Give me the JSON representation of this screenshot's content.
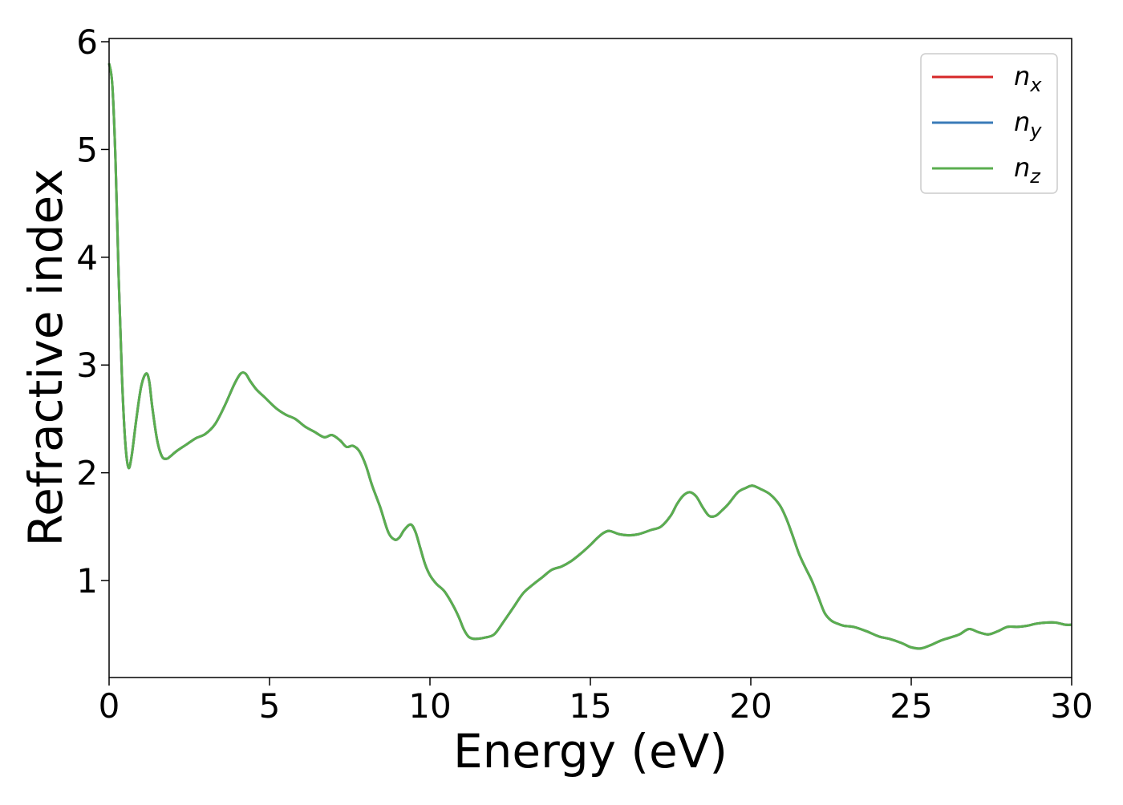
{
  "chart_data": {
    "type": "line",
    "xlabel": "Energy (eV)",
    "ylabel": "Refractive index",
    "xlim": [
      0,
      30
    ],
    "ylim": [
      0.1,
      6.03
    ],
    "xticks": [
      0,
      5,
      10,
      15,
      20,
      25,
      30
    ],
    "yticks": [
      1,
      2,
      3,
      4,
      5,
      6
    ],
    "grid": false,
    "legend_position": "top-right",
    "series": [
      {
        "name": "n",
        "subscript": "x",
        "color": "#d62728",
        "x": [
          0,
          0.1,
          0.2,
          0.3,
          0.4,
          0.5,
          0.6,
          0.7,
          0.85,
          1.0,
          1.15,
          1.25,
          1.35,
          1.5,
          1.65,
          1.8,
          1.9,
          2.1,
          2.4,
          2.7,
          3.0,
          3.3,
          3.6,
          3.9,
          4.1,
          4.25,
          4.4,
          4.6,
          4.85,
          5.2,
          5.5,
          5.8,
          6.1,
          6.4,
          6.7,
          6.95,
          7.2,
          7.4,
          7.6,
          7.8,
          8.0,
          8.2,
          8.45,
          8.7,
          8.9,
          9.05,
          9.2,
          9.4,
          9.55,
          9.7,
          9.85,
          10.0,
          10.2,
          10.45,
          10.7,
          10.9,
          11.05,
          11.2,
          11.35,
          11.5,
          11.7,
          12.0,
          12.3,
          12.6,
          12.9,
          13.2,
          13.5,
          13.8,
          14.1,
          14.4,
          14.7,
          15.0,
          15.2,
          15.4,
          15.6,
          15.9,
          16.2,
          16.5,
          16.9,
          17.2,
          17.5,
          17.7,
          17.9,
          18.1,
          18.3,
          18.5,
          18.7,
          18.9,
          19.1,
          19.3,
          19.6,
          19.85,
          20.05,
          20.3,
          20.6,
          20.9,
          21.1,
          21.3,
          21.5,
          21.7,
          21.9,
          22.1,
          22.3,
          22.5,
          22.7,
          22.9,
          23.2,
          23.6,
          24.0,
          24.3,
          24.7,
          25.0,
          25.3,
          25.6,
          25.9,
          26.2,
          26.5,
          26.8,
          27.1,
          27.4,
          27.7,
          28.0,
          28.3,
          28.6,
          28.9,
          29.2,
          29.5,
          29.8,
          30.0
        ],
        "y": [
          5.8,
          5.6,
          4.9,
          3.8,
          2.9,
          2.3,
          2.05,
          2.15,
          2.5,
          2.8,
          2.92,
          2.85,
          2.6,
          2.3,
          2.15,
          2.13,
          2.15,
          2.2,
          2.26,
          2.32,
          2.36,
          2.45,
          2.62,
          2.82,
          2.92,
          2.92,
          2.85,
          2.77,
          2.7,
          2.6,
          2.54,
          2.5,
          2.43,
          2.38,
          2.33,
          2.35,
          2.3,
          2.24,
          2.25,
          2.2,
          2.07,
          1.88,
          1.68,
          1.45,
          1.38,
          1.4,
          1.47,
          1.52,
          1.45,
          1.3,
          1.15,
          1.05,
          0.97,
          0.9,
          0.78,
          0.66,
          0.55,
          0.48,
          0.46,
          0.46,
          0.47,
          0.5,
          0.62,
          0.75,
          0.88,
          0.96,
          1.03,
          1.1,
          1.13,
          1.18,
          1.25,
          1.33,
          1.39,
          1.44,
          1.46,
          1.43,
          1.42,
          1.43,
          1.47,
          1.5,
          1.6,
          1.71,
          1.79,
          1.82,
          1.78,
          1.68,
          1.6,
          1.6,
          1.65,
          1.71,
          1.82,
          1.86,
          1.88,
          1.85,
          1.8,
          1.7,
          1.58,
          1.42,
          1.25,
          1.12,
          1.0,
          0.85,
          0.7,
          0.63,
          0.6,
          0.58,
          0.57,
          0.53,
          0.48,
          0.46,
          0.42,
          0.38,
          0.37,
          0.4,
          0.44,
          0.47,
          0.5,
          0.55,
          0.52,
          0.5,
          0.53,
          0.57,
          0.57,
          0.58,
          0.6,
          0.61,
          0.61,
          0.59,
          0.59
        ]
      },
      {
        "name": "n",
        "subscript": "y",
        "color": "#3a7bb8",
        "x": [
          0,
          0.1,
          0.2,
          0.3,
          0.4,
          0.5,
          0.6,
          0.7,
          0.85,
          1.0,
          1.15,
          1.25,
          1.35,
          1.5,
          1.65,
          1.8,
          1.9,
          2.1,
          2.4,
          2.7,
          3.0,
          3.3,
          3.6,
          3.9,
          4.1,
          4.25,
          4.4,
          4.6,
          4.85,
          5.2,
          5.5,
          5.8,
          6.1,
          6.4,
          6.7,
          6.95,
          7.2,
          7.4,
          7.6,
          7.8,
          8.0,
          8.2,
          8.45,
          8.7,
          8.9,
          9.05,
          9.2,
          9.4,
          9.55,
          9.7,
          9.85,
          10.0,
          10.2,
          10.45,
          10.7,
          10.9,
          11.05,
          11.2,
          11.35,
          11.5,
          11.7,
          12.0,
          12.3,
          12.6,
          12.9,
          13.2,
          13.5,
          13.8,
          14.1,
          14.4,
          14.7,
          15.0,
          15.2,
          15.4,
          15.6,
          15.9,
          16.2,
          16.5,
          16.9,
          17.2,
          17.5,
          17.7,
          17.9,
          18.1,
          18.3,
          18.5,
          18.7,
          18.9,
          19.1,
          19.3,
          19.6,
          19.85,
          20.05,
          20.3,
          20.6,
          20.9,
          21.1,
          21.3,
          21.5,
          21.7,
          21.9,
          22.1,
          22.3,
          22.5,
          22.7,
          22.9,
          23.2,
          23.6,
          24.0,
          24.3,
          24.7,
          25.0,
          25.3,
          25.6,
          25.9,
          26.2,
          26.5,
          26.8,
          27.1,
          27.4,
          27.7,
          28.0,
          28.3,
          28.6,
          28.9,
          29.2,
          29.5,
          29.8,
          30.0
        ],
        "y": [
          5.8,
          5.6,
          4.9,
          3.8,
          2.9,
          2.3,
          2.05,
          2.15,
          2.5,
          2.8,
          2.92,
          2.85,
          2.6,
          2.3,
          2.15,
          2.13,
          2.15,
          2.2,
          2.26,
          2.32,
          2.36,
          2.45,
          2.62,
          2.82,
          2.92,
          2.92,
          2.85,
          2.77,
          2.7,
          2.6,
          2.54,
          2.5,
          2.43,
          2.38,
          2.33,
          2.35,
          2.3,
          2.24,
          2.25,
          2.2,
          2.07,
          1.88,
          1.68,
          1.45,
          1.38,
          1.4,
          1.47,
          1.52,
          1.45,
          1.3,
          1.15,
          1.05,
          0.97,
          0.9,
          0.78,
          0.66,
          0.55,
          0.48,
          0.46,
          0.46,
          0.47,
          0.5,
          0.62,
          0.75,
          0.88,
          0.96,
          1.03,
          1.1,
          1.13,
          1.18,
          1.25,
          1.33,
          1.39,
          1.44,
          1.46,
          1.43,
          1.42,
          1.43,
          1.47,
          1.5,
          1.6,
          1.71,
          1.79,
          1.82,
          1.78,
          1.68,
          1.6,
          1.6,
          1.65,
          1.71,
          1.82,
          1.86,
          1.88,
          1.85,
          1.8,
          1.7,
          1.58,
          1.42,
          1.25,
          1.12,
          1.0,
          0.85,
          0.7,
          0.63,
          0.6,
          0.58,
          0.57,
          0.53,
          0.48,
          0.46,
          0.42,
          0.38,
          0.37,
          0.4,
          0.44,
          0.47,
          0.5,
          0.55,
          0.52,
          0.5,
          0.53,
          0.57,
          0.57,
          0.58,
          0.6,
          0.61,
          0.61,
          0.59,
          0.59
        ]
      },
      {
        "name": "n",
        "subscript": "z",
        "color": "#5aae4f",
        "x": [
          0,
          0.1,
          0.2,
          0.3,
          0.4,
          0.5,
          0.6,
          0.7,
          0.85,
          1.0,
          1.15,
          1.25,
          1.35,
          1.5,
          1.65,
          1.8,
          1.9,
          2.1,
          2.4,
          2.7,
          3.0,
          3.3,
          3.6,
          3.9,
          4.1,
          4.25,
          4.4,
          4.6,
          4.85,
          5.2,
          5.5,
          5.8,
          6.1,
          6.4,
          6.7,
          6.95,
          7.2,
          7.4,
          7.6,
          7.8,
          8.0,
          8.2,
          8.45,
          8.7,
          8.9,
          9.05,
          9.2,
          9.4,
          9.55,
          9.7,
          9.85,
          10.0,
          10.2,
          10.45,
          10.7,
          10.9,
          11.05,
          11.2,
          11.35,
          11.5,
          11.7,
          12.0,
          12.3,
          12.6,
          12.9,
          13.2,
          13.5,
          13.8,
          14.1,
          14.4,
          14.7,
          15.0,
          15.2,
          15.4,
          15.6,
          15.9,
          16.2,
          16.5,
          16.9,
          17.2,
          17.5,
          17.7,
          17.9,
          18.1,
          18.3,
          18.5,
          18.7,
          18.9,
          19.1,
          19.3,
          19.6,
          19.85,
          20.05,
          20.3,
          20.6,
          20.9,
          21.1,
          21.3,
          21.5,
          21.7,
          21.9,
          22.1,
          22.3,
          22.5,
          22.7,
          22.9,
          23.2,
          23.6,
          24.0,
          24.3,
          24.7,
          25.0,
          25.3,
          25.6,
          25.9,
          26.2,
          26.5,
          26.8,
          27.1,
          27.4,
          27.7,
          28.0,
          28.3,
          28.6,
          28.9,
          29.2,
          29.5,
          29.8,
          30.0
        ],
        "y": [
          5.8,
          5.6,
          4.9,
          3.8,
          2.9,
          2.3,
          2.05,
          2.15,
          2.5,
          2.8,
          2.92,
          2.85,
          2.6,
          2.3,
          2.15,
          2.13,
          2.15,
          2.2,
          2.26,
          2.32,
          2.36,
          2.45,
          2.62,
          2.82,
          2.92,
          2.92,
          2.85,
          2.77,
          2.7,
          2.6,
          2.54,
          2.5,
          2.43,
          2.38,
          2.33,
          2.35,
          2.3,
          2.24,
          2.25,
          2.2,
          2.07,
          1.88,
          1.68,
          1.45,
          1.38,
          1.4,
          1.47,
          1.52,
          1.45,
          1.3,
          1.15,
          1.05,
          0.97,
          0.9,
          0.78,
          0.66,
          0.55,
          0.48,
          0.46,
          0.46,
          0.47,
          0.5,
          0.62,
          0.75,
          0.88,
          0.96,
          1.03,
          1.1,
          1.13,
          1.18,
          1.25,
          1.33,
          1.39,
          1.44,
          1.46,
          1.43,
          1.42,
          1.43,
          1.47,
          1.5,
          1.6,
          1.71,
          1.79,
          1.82,
          1.78,
          1.68,
          1.6,
          1.6,
          1.65,
          1.71,
          1.82,
          1.86,
          1.88,
          1.85,
          1.8,
          1.7,
          1.58,
          1.42,
          1.25,
          1.12,
          1.0,
          0.85,
          0.7,
          0.63,
          0.6,
          0.58,
          0.57,
          0.53,
          0.48,
          0.46,
          0.42,
          0.38,
          0.37,
          0.4,
          0.44,
          0.47,
          0.5,
          0.55,
          0.52,
          0.5,
          0.53,
          0.57,
          0.57,
          0.58,
          0.6,
          0.61,
          0.61,
          0.59,
          0.59
        ]
      }
    ]
  }
}
